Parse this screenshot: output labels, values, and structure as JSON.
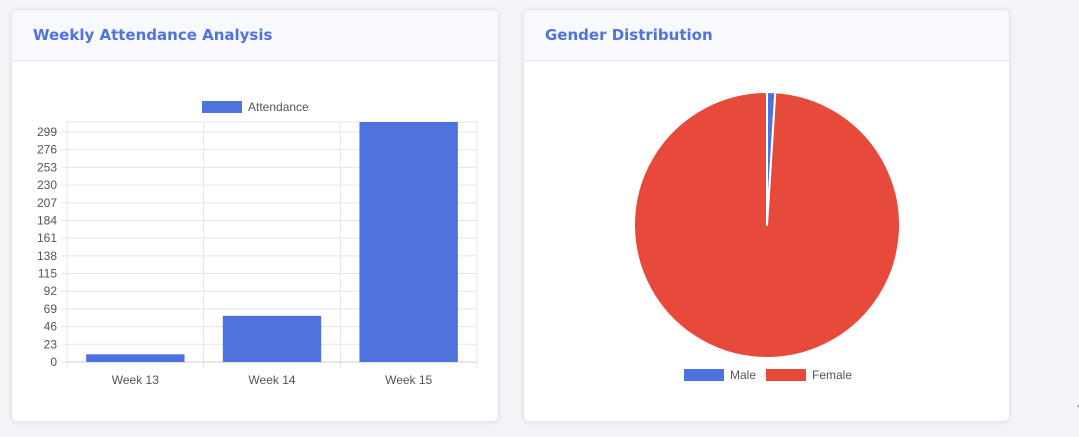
{
  "cards": {
    "attendance": {
      "title": "Weekly Attendance Analysis"
    },
    "gender": {
      "title": "Gender Distribution"
    }
  },
  "chart_data": [
    {
      "type": "bar",
      "legend": [
        "Attendance"
      ],
      "legend_position": "top",
      "categories": [
        "Week 13",
        "Week 14",
        "Week 15"
      ],
      "series": [
        {
          "name": "Attendance",
          "values": [
            10,
            60,
            312
          ],
          "color": "#4e73df"
        }
      ],
      "yticks": [
        0,
        23,
        46,
        69,
        92,
        115,
        138,
        161,
        184,
        207,
        230,
        253,
        276,
        299
      ],
      "ylim": [
        0,
        312
      ],
      "grid": true,
      "title": "",
      "xlabel": "",
      "ylabel": ""
    },
    {
      "type": "pie",
      "labels": [
        "Male",
        "Female"
      ],
      "values": [
        1,
        99
      ],
      "colors": [
        "#4e73df",
        "#e74a3b"
      ],
      "legend_position": "bottom",
      "title": ""
    }
  ],
  "edge_glyph": "'"
}
